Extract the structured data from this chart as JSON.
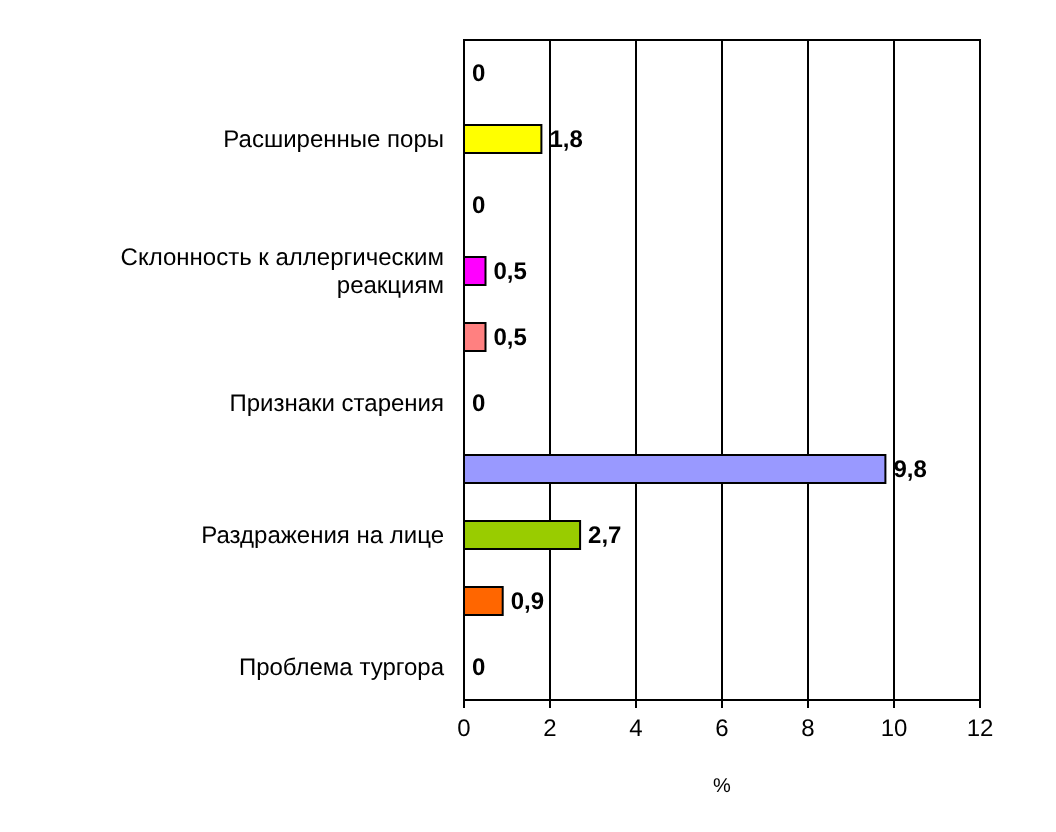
{
  "chart_data": {
    "type": "bar",
    "orientation": "horizontal",
    "xlabel": "%",
    "categories": [
      null,
      "Расширенные поры",
      null,
      "Склонность к аллергическим реакциям",
      null,
      "Признаки старения",
      null,
      "Раздражения на лице",
      null,
      "Проблема тургора"
    ],
    "values": [
      0,
      1.8,
      0,
      0.5,
      0.5,
      0,
      9.8,
      2.7,
      0.9,
      0
    ],
    "colors": [
      null,
      "#ffff00",
      null,
      "#ff00ff",
      "#ff8080",
      null,
      "#9999ff",
      "#99cc00",
      "#ff6600",
      null
    ],
    "value_labels": [
      "0",
      "1,8",
      "0",
      "0,5",
      "0,5",
      "0",
      "9,8",
      "2,7",
      "0,9",
      "0"
    ],
    "xlim": [
      0,
      12
    ],
    "xticks": [
      0,
      2,
      4,
      6,
      8,
      10,
      12
    ],
    "grid": "x"
  }
}
